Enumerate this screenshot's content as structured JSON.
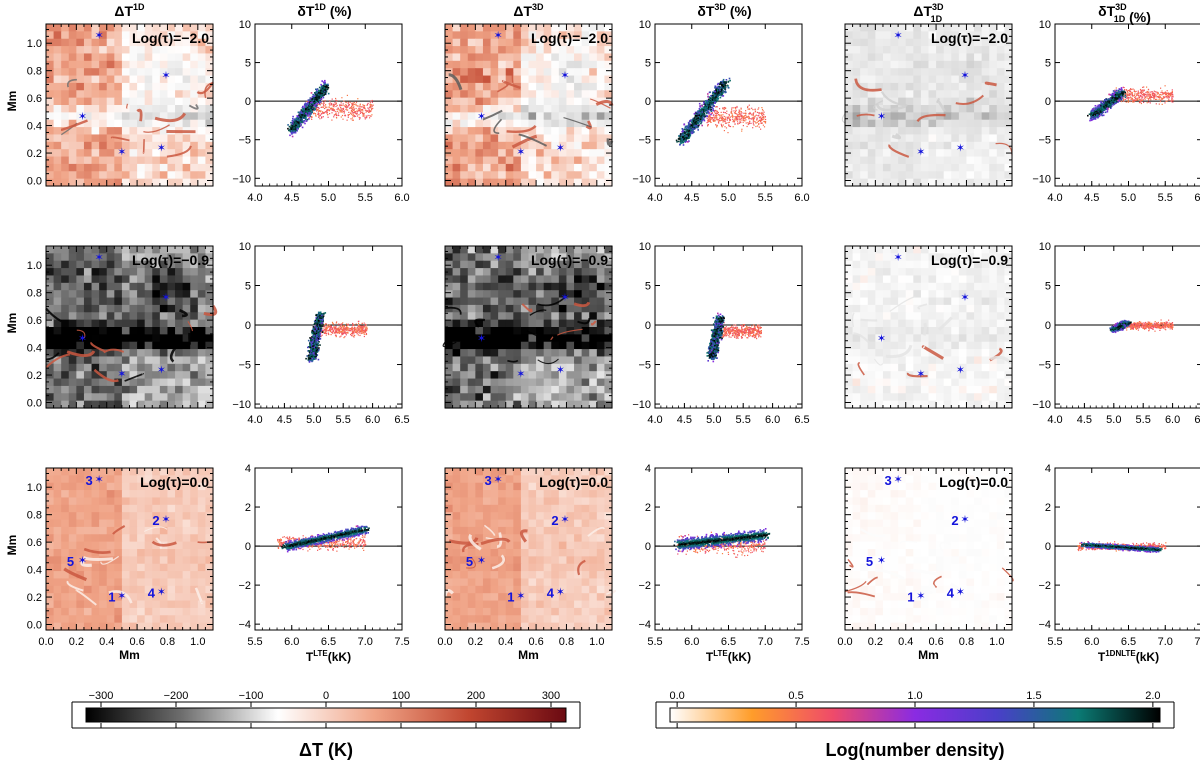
{
  "chart_data": {
    "type": "figure-grid",
    "rows": [
      {
        "tau_label": "Log(τ)=−2.0"
      },
      {
        "tau_label": "Log(τ)=−0.9"
      },
      {
        "tau_label": "Log(τ)=0.0"
      }
    ],
    "columns": [
      {
        "kind": "map",
        "title": "ΔT",
        "sup": "1D",
        "sub": ""
      },
      {
        "kind": "scatter",
        "title": "δT",
        "sup": "1D",
        "sub": "",
        "suffix": " (%)"
      },
      {
        "kind": "map",
        "title": "ΔT",
        "sup": "3D",
        "sub": ""
      },
      {
        "kind": "scatter",
        "title": "δT",
        "sup": "3D",
        "sub": "",
        "suffix": " (%)"
      },
      {
        "kind": "map",
        "title": "ΔT",
        "sup": "3D",
        "sub": "1D"
      },
      {
        "kind": "scatter",
        "title": "δT",
        "sup": "3D",
        "sub": "1D",
        "suffix": " (%)"
      }
    ],
    "map_axes": {
      "xlabel": "Mm",
      "ylabel": "Mm",
      "xlim": [
        0.0,
        1.1
      ],
      "ylim": [
        -0.04,
        1.14
      ],
      "xticks": [
        0.0,
        0.2,
        0.4,
        0.6,
        0.8,
        1.0
      ],
      "yticks": [
        0.0,
        0.2,
        0.4,
        0.6,
        0.8,
        1.0
      ],
      "xtick_labels": [
        "0.0",
        "0.2",
        "0.4",
        "0.6",
        "0.8",
        "1.0"
      ],
      "ytick_labels": [
        "0.0",
        "0.2",
        "0.4",
        "0.6",
        "0.8",
        "1.0"
      ]
    },
    "markers": [
      {
        "label": "1",
        "x": 0.5,
        "y": 0.21
      },
      {
        "label": "2",
        "x": 0.79,
        "y": 0.77
      },
      {
        "label": "3",
        "x": 0.35,
        "y": 1.06
      },
      {
        "label": "4",
        "x": 0.76,
        "y": 0.24
      },
      {
        "label": "5",
        "x": 0.24,
        "y": 0.47
      }
    ],
    "scatter_axes": [
      {
        "xlim": [
          4.0,
          6.0
        ],
        "ylim": [
          -11,
          10
        ],
        "xticks": [
          4.0,
          4.5,
          5.0,
          5.5,
          6.0
        ],
        "xtick_labels": [
          "4.0",
          "4.5",
          "5.0",
          "5.5",
          "6.0"
        ],
        "yticks": [
          -10,
          -5,
          0,
          5,
          10
        ],
        "ytick_labels": [
          "−10",
          "−5",
          "0",
          "5",
          "10"
        ]
      },
      {
        "xlim": [
          4.0,
          6.5
        ],
        "ylim": [
          -10.5,
          10
        ],
        "xticks": [
          4.0,
          4.5,
          5.0,
          5.5,
          6.0,
          6.5
        ],
        "xtick_labels": [
          "4.0",
          "4.5",
          "5.0",
          "5.5",
          "6.0",
          "6.5"
        ],
        "yticks": [
          -10,
          -5,
          0,
          5,
          10
        ],
        "ytick_labels": [
          "−10",
          "−5",
          "0",
          "5",
          "10"
        ]
      },
      {
        "xlim": [
          5.5,
          7.5
        ],
        "ylim": [
          -4.3,
          4
        ],
        "xticks": [
          5.5,
          6.0,
          6.5,
          7.0,
          7.5
        ],
        "xtick_labels": [
          "5.5",
          "6.0",
          "6.5",
          "7.0",
          "7.5"
        ],
        "yticks": [
          -4,
          -2,
          0,
          2,
          4
        ],
        "ytick_labels": [
          "−4",
          "−2",
          "0",
          "2",
          "4"
        ]
      }
    ],
    "scatter_xlabels": [
      {
        "base": "T",
        "sup": "LTE",
        "suffix": "(kK)"
      },
      {
        "base": "T",
        "sup": "LTE",
        "suffix": "(kK)"
      },
      {
        "base": "T",
        "sup": "1DNLTE",
        "suffix": "(kK)"
      }
    ],
    "scatter_clouds": [
      [
        {
          "x0": 4.5,
          "x1": 4.95,
          "y0": -3.5,
          "y1": 2.0,
          "spread": 0.8,
          "tx0": 4.7,
          "tx1": 5.6,
          "tail_y": -1.0
        },
        {
          "x0": 4.35,
          "x1": 4.95,
          "y0": -5.0,
          "y1": 2.5,
          "spread": 0.9,
          "tx0": 4.7,
          "tx1": 5.5,
          "tail_y": -2.0
        },
        {
          "x0": 4.5,
          "x1": 4.9,
          "y0": -1.8,
          "y1": 1.2,
          "spread": 0.6,
          "tx0": 4.8,
          "tx1": 5.6,
          "tail_y": 0.8
        }
      ],
      [
        {
          "x0": 4.95,
          "x1": 5.1,
          "y0": -4.2,
          "y1": 1.5,
          "spread": 0.5,
          "tx0": 5.1,
          "tx1": 5.9,
          "tail_y": -0.5
        },
        {
          "x0": 4.95,
          "x1": 5.1,
          "y0": -4.0,
          "y1": 1.0,
          "spread": 0.5,
          "tx0": 5.1,
          "tx1": 5.8,
          "tail_y": -0.7
        },
        {
          "x0": 5.0,
          "x1": 5.2,
          "y0": -0.5,
          "y1": 0.4,
          "spread": 0.3,
          "tx0": 5.2,
          "tx1": 6.0,
          "tail_y": 0.0
        }
      ],
      [
        {
          "x0": 5.9,
          "x1": 7.0,
          "y0": 0.0,
          "y1": 0.9,
          "spread": 0.22,
          "tx0": 5.8,
          "tx1": 7.0,
          "tail_y": 0.2
        },
        {
          "x0": 5.8,
          "x1": 7.0,
          "y0": 0.1,
          "y1": 0.6,
          "spread": 0.3,
          "tx0": 5.8,
          "tx1": 7.0,
          "tail_y": 0.1
        },
        {
          "x0": 5.9,
          "x1": 6.9,
          "y0": 0.1,
          "y1": -0.15,
          "spread": 0.12,
          "tx0": 5.8,
          "tx1": 7.0,
          "tail_y": 0.0
        }
      ]
    ],
    "colorbars": [
      {
        "name": "deltaT",
        "ticks": [
          -300,
          -200,
          -100,
          0,
          100,
          200,
          300
        ],
        "tick_labels": [
          "−300",
          "−200",
          "−100",
          "0",
          "100",
          "200",
          "300"
        ],
        "range": [
          -320,
          320
        ],
        "label": "ΔT (K)",
        "colors": [
          "#000000",
          "#6e6e6e",
          "#ffffff",
          "#f0a487",
          "#c0452f",
          "#6b0a12"
        ]
      },
      {
        "name": "density",
        "ticks": [
          0.0,
          0.5,
          1.0,
          1.5,
          2.0
        ],
        "tick_labels": [
          "0.0",
          "0.5",
          "1.0",
          "1.5",
          "2.0"
        ],
        "range": [
          -0.03,
          2.03
        ],
        "label": "Log(number density)",
        "colors": [
          "#ffffff",
          "#ff9d2a",
          "#ef4a6a",
          "#8a2be2",
          "#4a3fc9",
          "#0b7a74",
          "#000000"
        ]
      }
    ],
    "zero_line": 0
  }
}
